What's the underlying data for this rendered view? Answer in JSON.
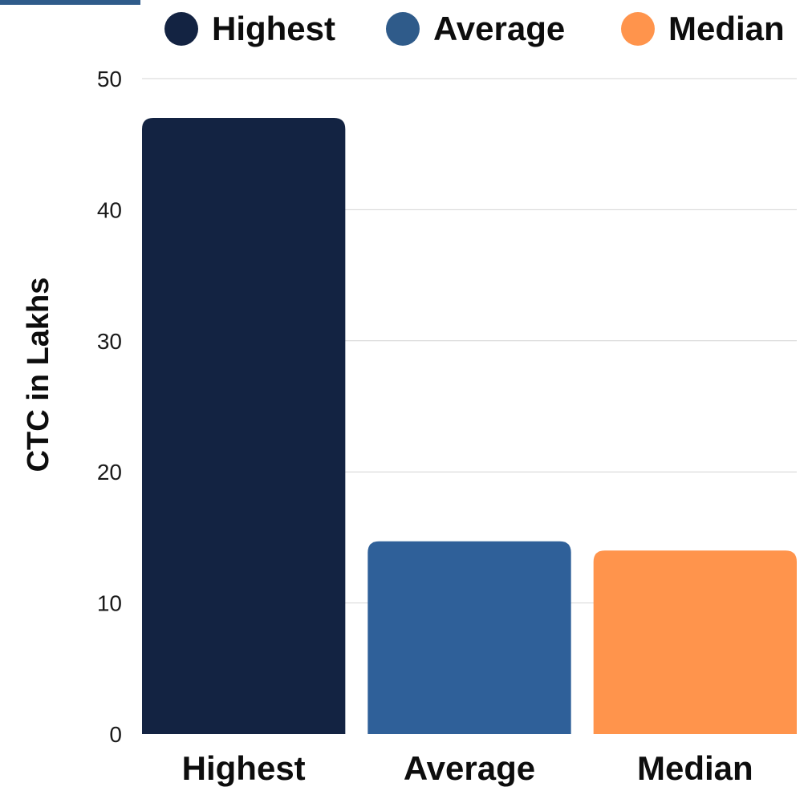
{
  "chart_data": {
    "type": "bar",
    "categories": [
      "Highest",
      "Average",
      "Median"
    ],
    "values": [
      47,
      14.7,
      14
    ],
    "colors": [
      "#132342",
      "#2f6099",
      "#ff944c"
    ],
    "title": "",
    "xlabel": "",
    "ylabel": "CTC in Lakhs",
    "ylim": [
      0,
      50
    ],
    "yticks": [
      "0",
      "10",
      "20",
      "30",
      "40",
      "50"
    ],
    "grid": true,
    "legend": {
      "position": "top",
      "items": [
        {
          "label": "Highest",
          "color": "#132342"
        },
        {
          "label": "Average",
          "color": "#2f5b8a"
        },
        {
          "label": "Median",
          "color": "#ff944c"
        }
      ]
    }
  },
  "decor": {
    "accent_color": "#2f5b8a"
  }
}
